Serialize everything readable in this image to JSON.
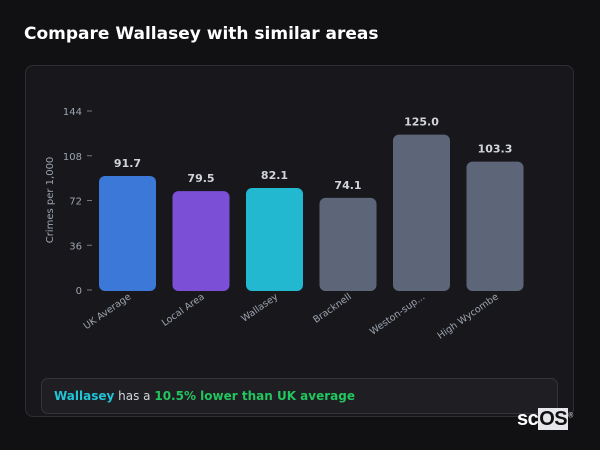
{
  "title": "Compare Wallasey with similar areas",
  "chart_data": {
    "type": "bar",
    "title": "",
    "xlabel": "",
    "ylabel": "Crimes per 1,000",
    "ylim": [
      0,
      144
    ],
    "yticks": [
      0,
      36,
      72,
      108,
      144
    ],
    "grid": false,
    "categories": [
      "UK Average",
      "Local Area",
      "Wallasey",
      "Bracknell",
      "Weston-sup...",
      "High Wycombe"
    ],
    "values": [
      91.7,
      79.5,
      82.1,
      74.1,
      125.0,
      103.3
    ],
    "data_labels": [
      "91.7",
      "79.5",
      "82.1",
      "74.1",
      "125.0",
      "103.3"
    ],
    "colors": [
      "#3b78d8",
      "#7b4fd6",
      "#22b8cf",
      "#5d6678",
      "#5d6678",
      "#5d6678"
    ]
  },
  "summary": {
    "area": "Wallasey",
    "middle": " has a ",
    "difference": "10.5% lower than UK average"
  },
  "logo": {
    "text_sc": "sc",
    "text_os": "OS",
    "mark": "®"
  }
}
